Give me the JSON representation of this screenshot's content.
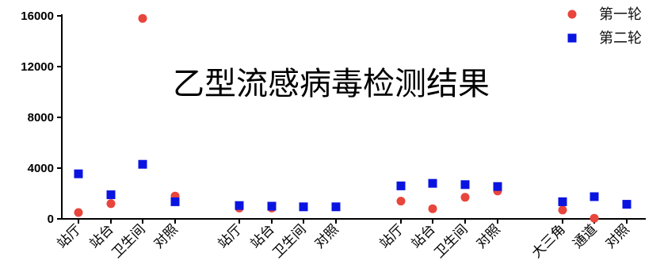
{
  "chart_data": {
    "type": "scatter",
    "title": "乙型流感病毒检测结果",
    "xlabel": "",
    "ylabel": "",
    "ylim": [
      0,
      16000
    ],
    "yticks": [
      "0",
      "4000",
      "8000",
      "12000",
      "16000"
    ],
    "legend_position": "top-right",
    "grid": false,
    "categories": [
      "站厅",
      "站台",
      "卫生间",
      "对照",
      "站厅",
      "站台",
      "卫生间",
      "对照",
      "站厅",
      "站台",
      "卫生间",
      "对照",
      "大三角",
      "通道",
      "对照"
    ],
    "series": [
      {
        "name": "第一轮",
        "marker": "circle",
        "color": "#e8453c",
        "values": [
          500,
          1200,
          15800,
          1800,
          850,
          850,
          null,
          null,
          1400,
          800,
          1700,
          2200,
          700,
          50,
          1150
        ]
      },
      {
        "name": "第二轮",
        "marker": "square",
        "color": "#0a14e0",
        "values": [
          3550,
          1900,
          4300,
          1350,
          1050,
          1000,
          950,
          950,
          2600,
          2800,
          2700,
          2550,
          1350,
          1750,
          1150
        ]
      }
    ]
  }
}
